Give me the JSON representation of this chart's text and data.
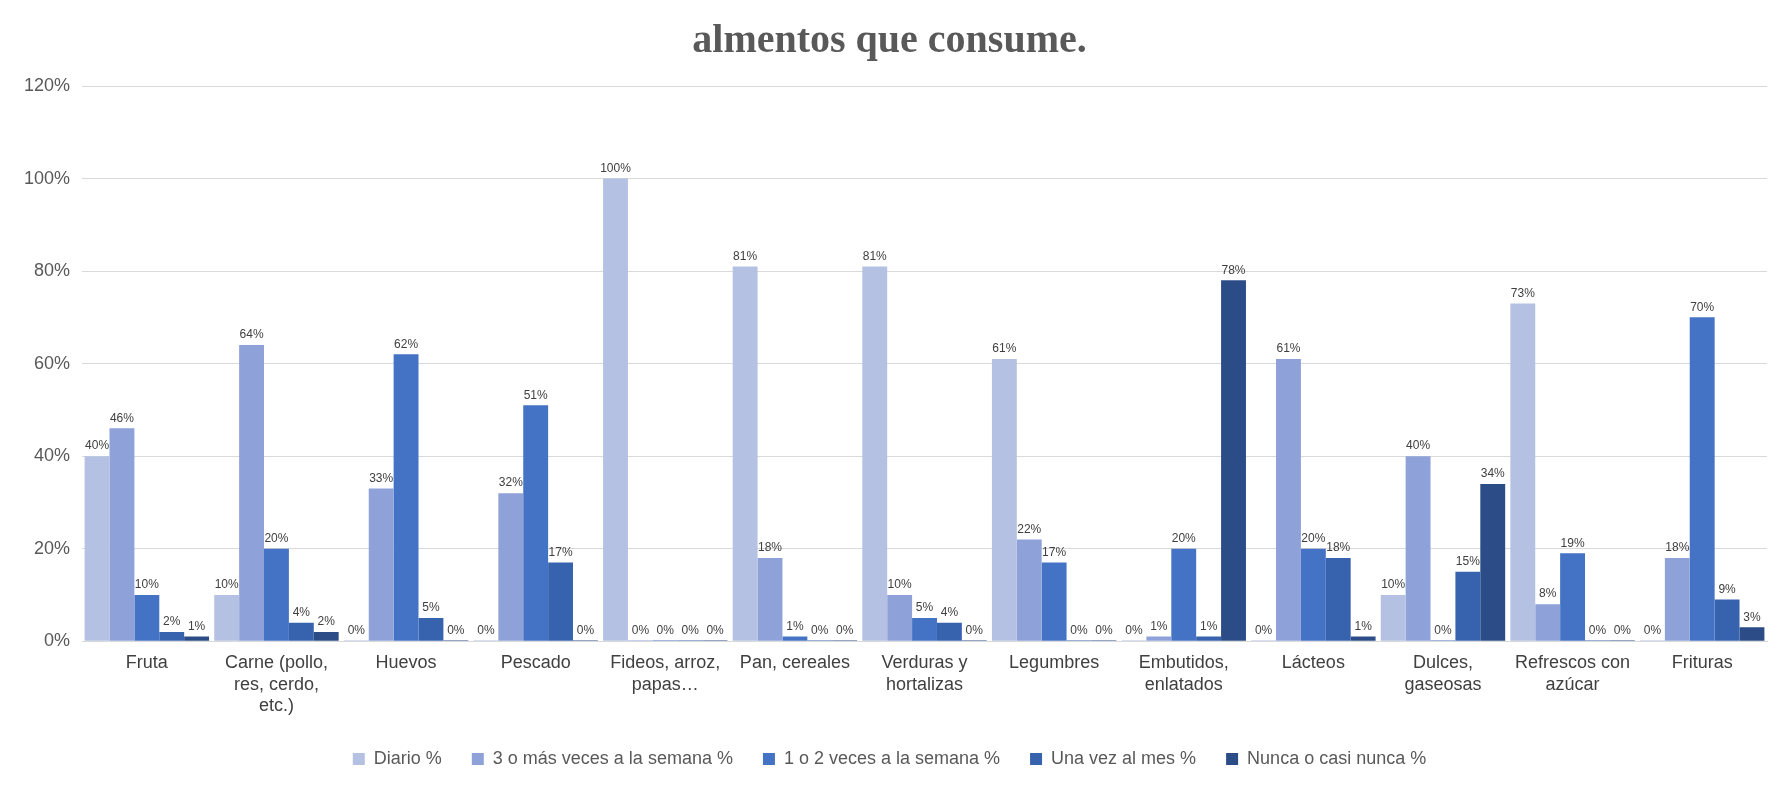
{
  "chart_data": {
    "type": "bar",
    "title": "almentos que consume.",
    "categories": [
      "Fruta",
      "Carne (pollo, res, cerdo, etc.)",
      "Huevos",
      "Pescado",
      "Fideos, arroz, papas…",
      "Pan, cereales",
      "Verduras y hortalizas",
      "Legumbres",
      "Embutidos, enlatados",
      "Lácteos",
      "Dulces, gaseosas",
      "Refrescos con azúcar",
      "Frituras"
    ],
    "series": [
      {
        "name": "Diario %",
        "color": "#b4c1e3",
        "values": [
          40,
          10,
          0,
          0,
          100,
          81,
          81,
          61,
          0,
          0,
          10,
          73,
          0
        ],
        "value_labels": [
          "40%",
          "10%",
          "0%",
          "0%",
          "100%",
          "81%",
          "81%",
          "61%",
          "0%",
          "0%",
          "10%",
          "73%",
          "0%"
        ]
      },
      {
        "name": "3 o más veces a la semana %",
        "color": "#8ea2d9",
        "values": [
          46,
          64,
          33,
          32,
          0,
          18,
          10,
          22,
          1,
          61,
          40,
          8,
          18
        ],
        "value_labels": [
          "46%",
          "64%",
          "33%",
          "32%",
          "0%",
          "18%",
          "10%",
          "22%",
          "1%",
          "61%",
          "40%",
          "8%",
          "18%"
        ]
      },
      {
        "name": "1 o 2 veces a la semana %",
        "color": "#4472c4",
        "values": [
          10,
          20,
          62,
          51,
          0,
          1,
          5,
          17,
          20,
          20,
          0,
          19,
          70
        ],
        "value_labels": [
          "10%",
          "20%",
          "62%",
          "51%",
          "0%",
          "1%",
          "5%",
          "17%",
          "20%",
          "20%",
          "0%",
          "19%",
          "70%"
        ]
      },
      {
        "name": "Una vez al mes %",
        "color": "#3762ae",
        "values": [
          2,
          4,
          5,
          17,
          0,
          0,
          4,
          0,
          1,
          18,
          15,
          0,
          9
        ],
        "value_labels": [
          "2%",
          "4%",
          "5%",
          "17%",
          "0%",
          "0%",
          "4%",
          "0%",
          "1%",
          "18%",
          "15%",
          "0%",
          "9%"
        ]
      },
      {
        "name": "Nunca o casi nunca %",
        "color": "#2c4c87",
        "values": [
          1,
          2,
          0,
          0,
          0,
          0,
          0,
          0,
          78,
          1,
          34,
          0,
          3
        ],
        "value_labels": [
          "1%",
          "2%",
          "0%",
          "0%",
          "0%",
          "0%",
          "0%",
          "0%",
          "78%",
          "1%",
          "34%",
          "0%",
          "3%"
        ]
      }
    ],
    "ylim": [
      0,
      120
    ],
    "yticks": [
      {
        "value": 0,
        "label": "0%"
      },
      {
        "value": 20,
        "label": "20%"
      },
      {
        "value": 40,
        "label": "40%"
      },
      {
        "value": 60,
        "label": "60%"
      },
      {
        "value": 80,
        "label": "80%"
      },
      {
        "value": 100,
        "label": "100%"
      },
      {
        "value": 120,
        "label": "120%"
      }
    ],
    "grid": "y",
    "legend": "bottom"
  }
}
